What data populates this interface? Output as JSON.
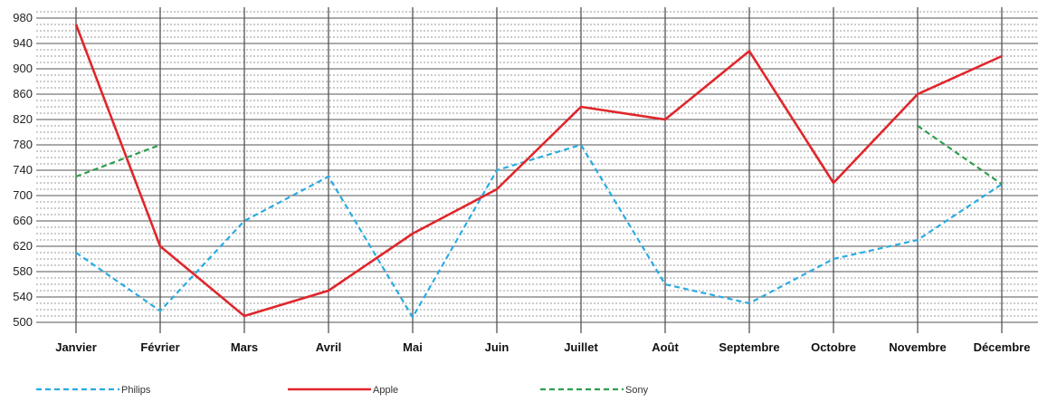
{
  "chart_data": {
    "type": "line",
    "title": "",
    "xlabel": "",
    "ylabel": "",
    "ylim": [
      500,
      990
    ],
    "y_ticks": [
      500,
      540,
      580,
      620,
      660,
      700,
      740,
      780,
      820,
      860,
      900,
      940,
      980
    ],
    "grid": true,
    "legend_position": "bottom",
    "categories": [
      "Janvier",
      "Février",
      "Mars",
      "Avril",
      "Mai",
      "Juin",
      "Juillet",
      "Août",
      "Septembre",
      "Octobre",
      "Novembre",
      "Décembre"
    ],
    "series": [
      {
        "name": "Philips",
        "color": "#29abe2",
        "style": "dashed",
        "values": [
          610,
          518,
          660,
          730,
          508,
          740,
          780,
          560,
          530,
          600,
          630,
          718
        ]
      },
      {
        "name": "Apple",
        "color": "#e0262b",
        "style": "solid",
        "values": [
          970,
          620,
          510,
          550,
          640,
          710,
          840,
          820,
          928,
          720,
          860,
          920
        ]
      },
      {
        "name": "Sony",
        "color": "#2e9e4f",
        "style": "dashed",
        "values": [
          730,
          780,
          null,
          null,
          null,
          null,
          null,
          null,
          null,
          null,
          810,
          718
        ]
      }
    ]
  }
}
